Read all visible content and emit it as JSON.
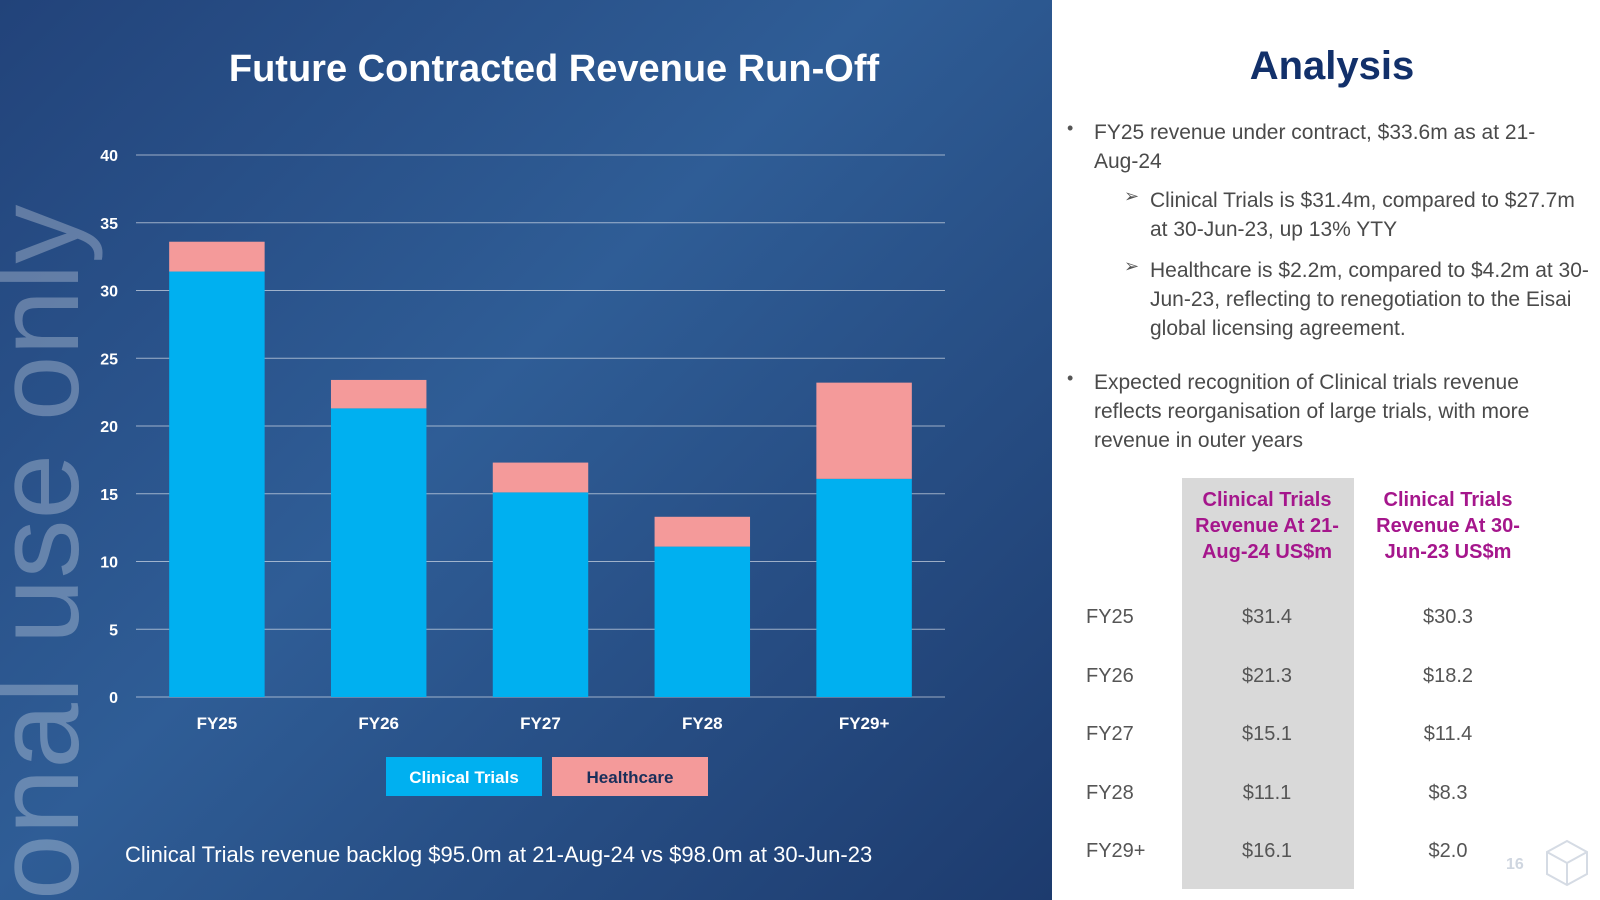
{
  "chart_data": {
    "type": "stacked_bar",
    "title": "Future Contracted Revenue Run-Off",
    "categories": [
      "FY25",
      "FY26",
      "FY27",
      "FY28",
      "FY29+"
    ],
    "series": [
      {
        "name": "Clinical Trials",
        "color": "#00b0f0",
        "values": [
          31.4,
          21.3,
          15.1,
          11.1,
          16.1
        ]
      },
      {
        "name": "Healthcare",
        "color": "#f49a9a",
        "values": [
          2.2,
          2.1,
          2.2,
          2.2,
          7.1
        ]
      }
    ],
    "ylim": [
      0,
      40
    ],
    "yticks": [
      0,
      5,
      10,
      15,
      20,
      25,
      30,
      35,
      40
    ],
    "grid": true,
    "footnote": "Clinical Trials revenue backlog $95.0m at 21-Aug-24 vs $98.0m at 30-Jun-23"
  },
  "watermark": "onal use only",
  "analysis": {
    "title": "Analysis",
    "bullets": [
      {
        "text": "FY25 revenue under contract, $33.6m as at 21-Aug-24",
        "sub": [
          "Clinical Trials is $31.4m, compared to $27.7m at 30-Jun-23, up 13% YTY",
          "Healthcare is $2.2m, compared to $4.2m at 30-Jun-23, reflecting to renegotiation to the Eisai global licensing agreement."
        ]
      },
      {
        "text": "Expected recognition of Clinical trials revenue reflects reorganisation of large trials, with more revenue in outer years",
        "sub": []
      }
    ]
  },
  "table": {
    "header": [
      "Clinical Trials Revenue At 21-Aug-24 US$m",
      "Clinical Trials Revenue At 30-Jun-23 US$m"
    ],
    "rows": [
      [
        "FY25",
        "$31.4",
        "$30.3"
      ],
      [
        "FY26",
        "$21.3",
        "$18.2"
      ],
      [
        "FY27",
        "$15.1",
        "$11.4"
      ],
      [
        "FY28",
        "$11.1",
        "$8.3"
      ],
      [
        "FY29+",
        "$16.1",
        "$2.0"
      ]
    ]
  },
  "page_number": "16"
}
